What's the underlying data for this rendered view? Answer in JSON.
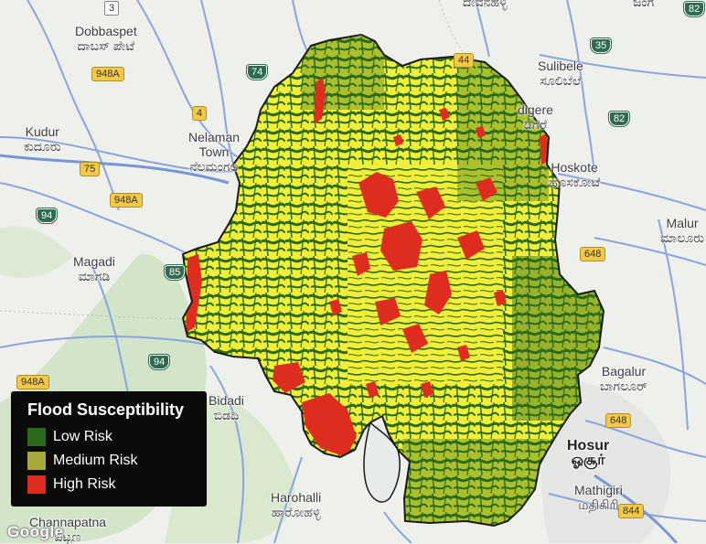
{
  "colors": {
    "low": "#2a6a1b",
    "medium": "#f2ef3a",
    "high": "#de2c1f",
    "road": "#7a95d6",
    "highway": "#f1c84a"
  },
  "legend": {
    "title": "Flood Susceptibility",
    "items": [
      {
        "label": "Low Risk",
        "color": "#2a6a1b"
      },
      {
        "label": "Medium Risk",
        "color": "#a8a83a"
      },
      {
        "label": "High Risk",
        "color": "#de2c1f"
      }
    ]
  },
  "places": {
    "dobbaspet": "Dobbaspet",
    "dobbaspet_kn": "ದಾಬಸ್ ಪೇಟೆ",
    "kudur": "Kudur",
    "kudur_kn": "ಕುದೂರು",
    "nelamangala1": "Nelaman",
    "nelamangala2": "Town",
    "nelamangala_kn": "ನೆಲಮಂಗಲ",
    "magadi": "Magadi",
    "magadi_kn": "ಮಾಗಡಿ",
    "bidadi": "Bidadi",
    "bidadi_kn": "ಬಿಡದಿ",
    "harohalli": "Harohalli",
    "harohalli_kn": "ಹಾರೋಹಳ್ಳಿ",
    "channapatna": "Channapatna",
    "channapatna_kn": "ಪಟ್ಟಣ",
    "sulibele": "Sulibele",
    "sulibele_kn": "ಸೂಲಿಬೆಲೆ",
    "digere": "digere",
    "digere_kn": "ಡಿಗೆರೆ",
    "hoskote": "Hoskote",
    "hoskote_kn": "ಹೊಸಕೋಟೆ",
    "malur": "Malur",
    "malur_kn": "ಮಾಲೂರು",
    "bagalur": "Bagalur",
    "bagalur_kn": "ಬಾಗಲೂರ್",
    "hosur": "Hosur",
    "hosur_kn": "ஓசூர்",
    "mathigiri": "Mathigiri",
    "mathigiri_kn": "மதிகிரி",
    "top_kn1": "ದೇವನಹಳ್ಳಿ",
    "top_kn2": "ಜಂಗ"
  },
  "shields": {
    "s3": "3",
    "s82a": "82",
    "s82b": "82",
    "s35": "35",
    "s74": "74",
    "s44": "44",
    "s4": "4",
    "s75": "75",
    "s948a1": "948A",
    "s948a2": "948A",
    "s948a3": "948A",
    "s94a": "94",
    "s94b": "94",
    "s85": "85",
    "s648a": "648",
    "s648b": "648",
    "s844": "844"
  },
  "branding": {
    "google": "Google"
  }
}
